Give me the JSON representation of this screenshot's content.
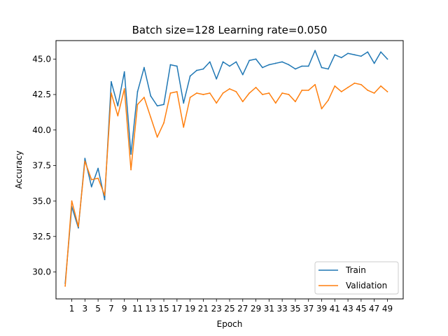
{
  "chart_data": {
    "type": "line",
    "title": "Batch size=128 Learning rate=0.050",
    "xlabel": "Epoch",
    "ylabel": "Accuracy",
    "xlim": [
      -1.4,
      51.4
    ],
    "ylim": [
      28.1,
      46.3
    ],
    "xticks": [
      1,
      3,
      5,
      7,
      9,
      11,
      13,
      15,
      17,
      19,
      21,
      23,
      25,
      27,
      29,
      31,
      33,
      35,
      37,
      39,
      41,
      43,
      45,
      47,
      49
    ],
    "yticks": [
      30.0,
      32.5,
      35.0,
      37.5,
      40.0,
      42.5,
      45.0
    ],
    "ytick_labels": [
      "30.0",
      "32.5",
      "35.0",
      "37.5",
      "40.0",
      "42.5",
      "45.0"
    ],
    "grid": false,
    "legend_position": "lower-right",
    "x": [
      0,
      1,
      2,
      3,
      4,
      5,
      6,
      7,
      8,
      9,
      10,
      11,
      12,
      13,
      14,
      15,
      16,
      17,
      18,
      19,
      20,
      21,
      22,
      23,
      24,
      25,
      26,
      27,
      28,
      29,
      30,
      31,
      32,
      33,
      34,
      35,
      36,
      37,
      38,
      39,
      40,
      41,
      42,
      43,
      44,
      45,
      46,
      47,
      48,
      49
    ],
    "series": [
      {
        "name": "Train",
        "color": "#1f77b4",
        "values": [
          29.2,
          34.6,
          33.1,
          38.0,
          36.0,
          37.3,
          35.1,
          43.4,
          41.7,
          44.1,
          38.3,
          42.7,
          44.4,
          42.4,
          41.7,
          41.8,
          44.6,
          44.5,
          41.9,
          43.8,
          44.2,
          44.3,
          44.8,
          43.6,
          44.8,
          44.5,
          44.8,
          43.9,
          44.9,
          45.0,
          44.4,
          44.6,
          44.7,
          44.8,
          44.6,
          44.3,
          44.5,
          44.5,
          45.6,
          44.4,
          44.3,
          45.3,
          45.1,
          45.4,
          45.3,
          45.2,
          45.5,
          44.7,
          45.5,
          45.0
        ]
      },
      {
        "name": "Validation",
        "color": "#ff7f0e",
        "values": [
          29.0,
          35.0,
          33.2,
          37.8,
          36.5,
          36.6,
          35.4,
          42.6,
          41.0,
          42.9,
          37.2,
          41.8,
          42.3,
          40.9,
          39.5,
          40.5,
          42.6,
          42.7,
          40.2,
          42.3,
          42.6,
          42.5,
          42.6,
          41.9,
          42.6,
          42.9,
          42.7,
          42.0,
          42.6,
          43.0,
          42.5,
          42.6,
          41.9,
          42.6,
          42.5,
          42.0,
          42.8,
          42.8,
          43.2,
          41.5,
          42.1,
          43.1,
          42.7,
          43.0,
          43.3,
          43.2,
          42.8,
          42.6,
          43.1,
          42.7
        ]
      }
    ]
  }
}
